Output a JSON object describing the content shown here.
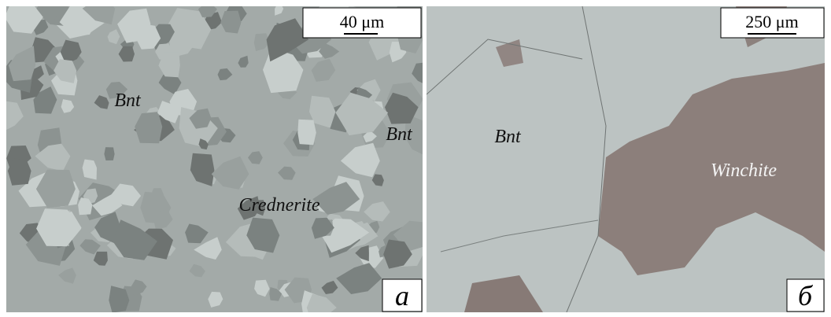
{
  "panels": [
    {
      "scale_bar": "40 μm",
      "labels": [
        "Bnt",
        "Bnt",
        "Crednerite"
      ],
      "letter": "a"
    },
    {
      "scale_bar": "250 μm",
      "labels": [
        "Bnt",
        "Winchite"
      ],
      "letter": "б"
    }
  ]
}
